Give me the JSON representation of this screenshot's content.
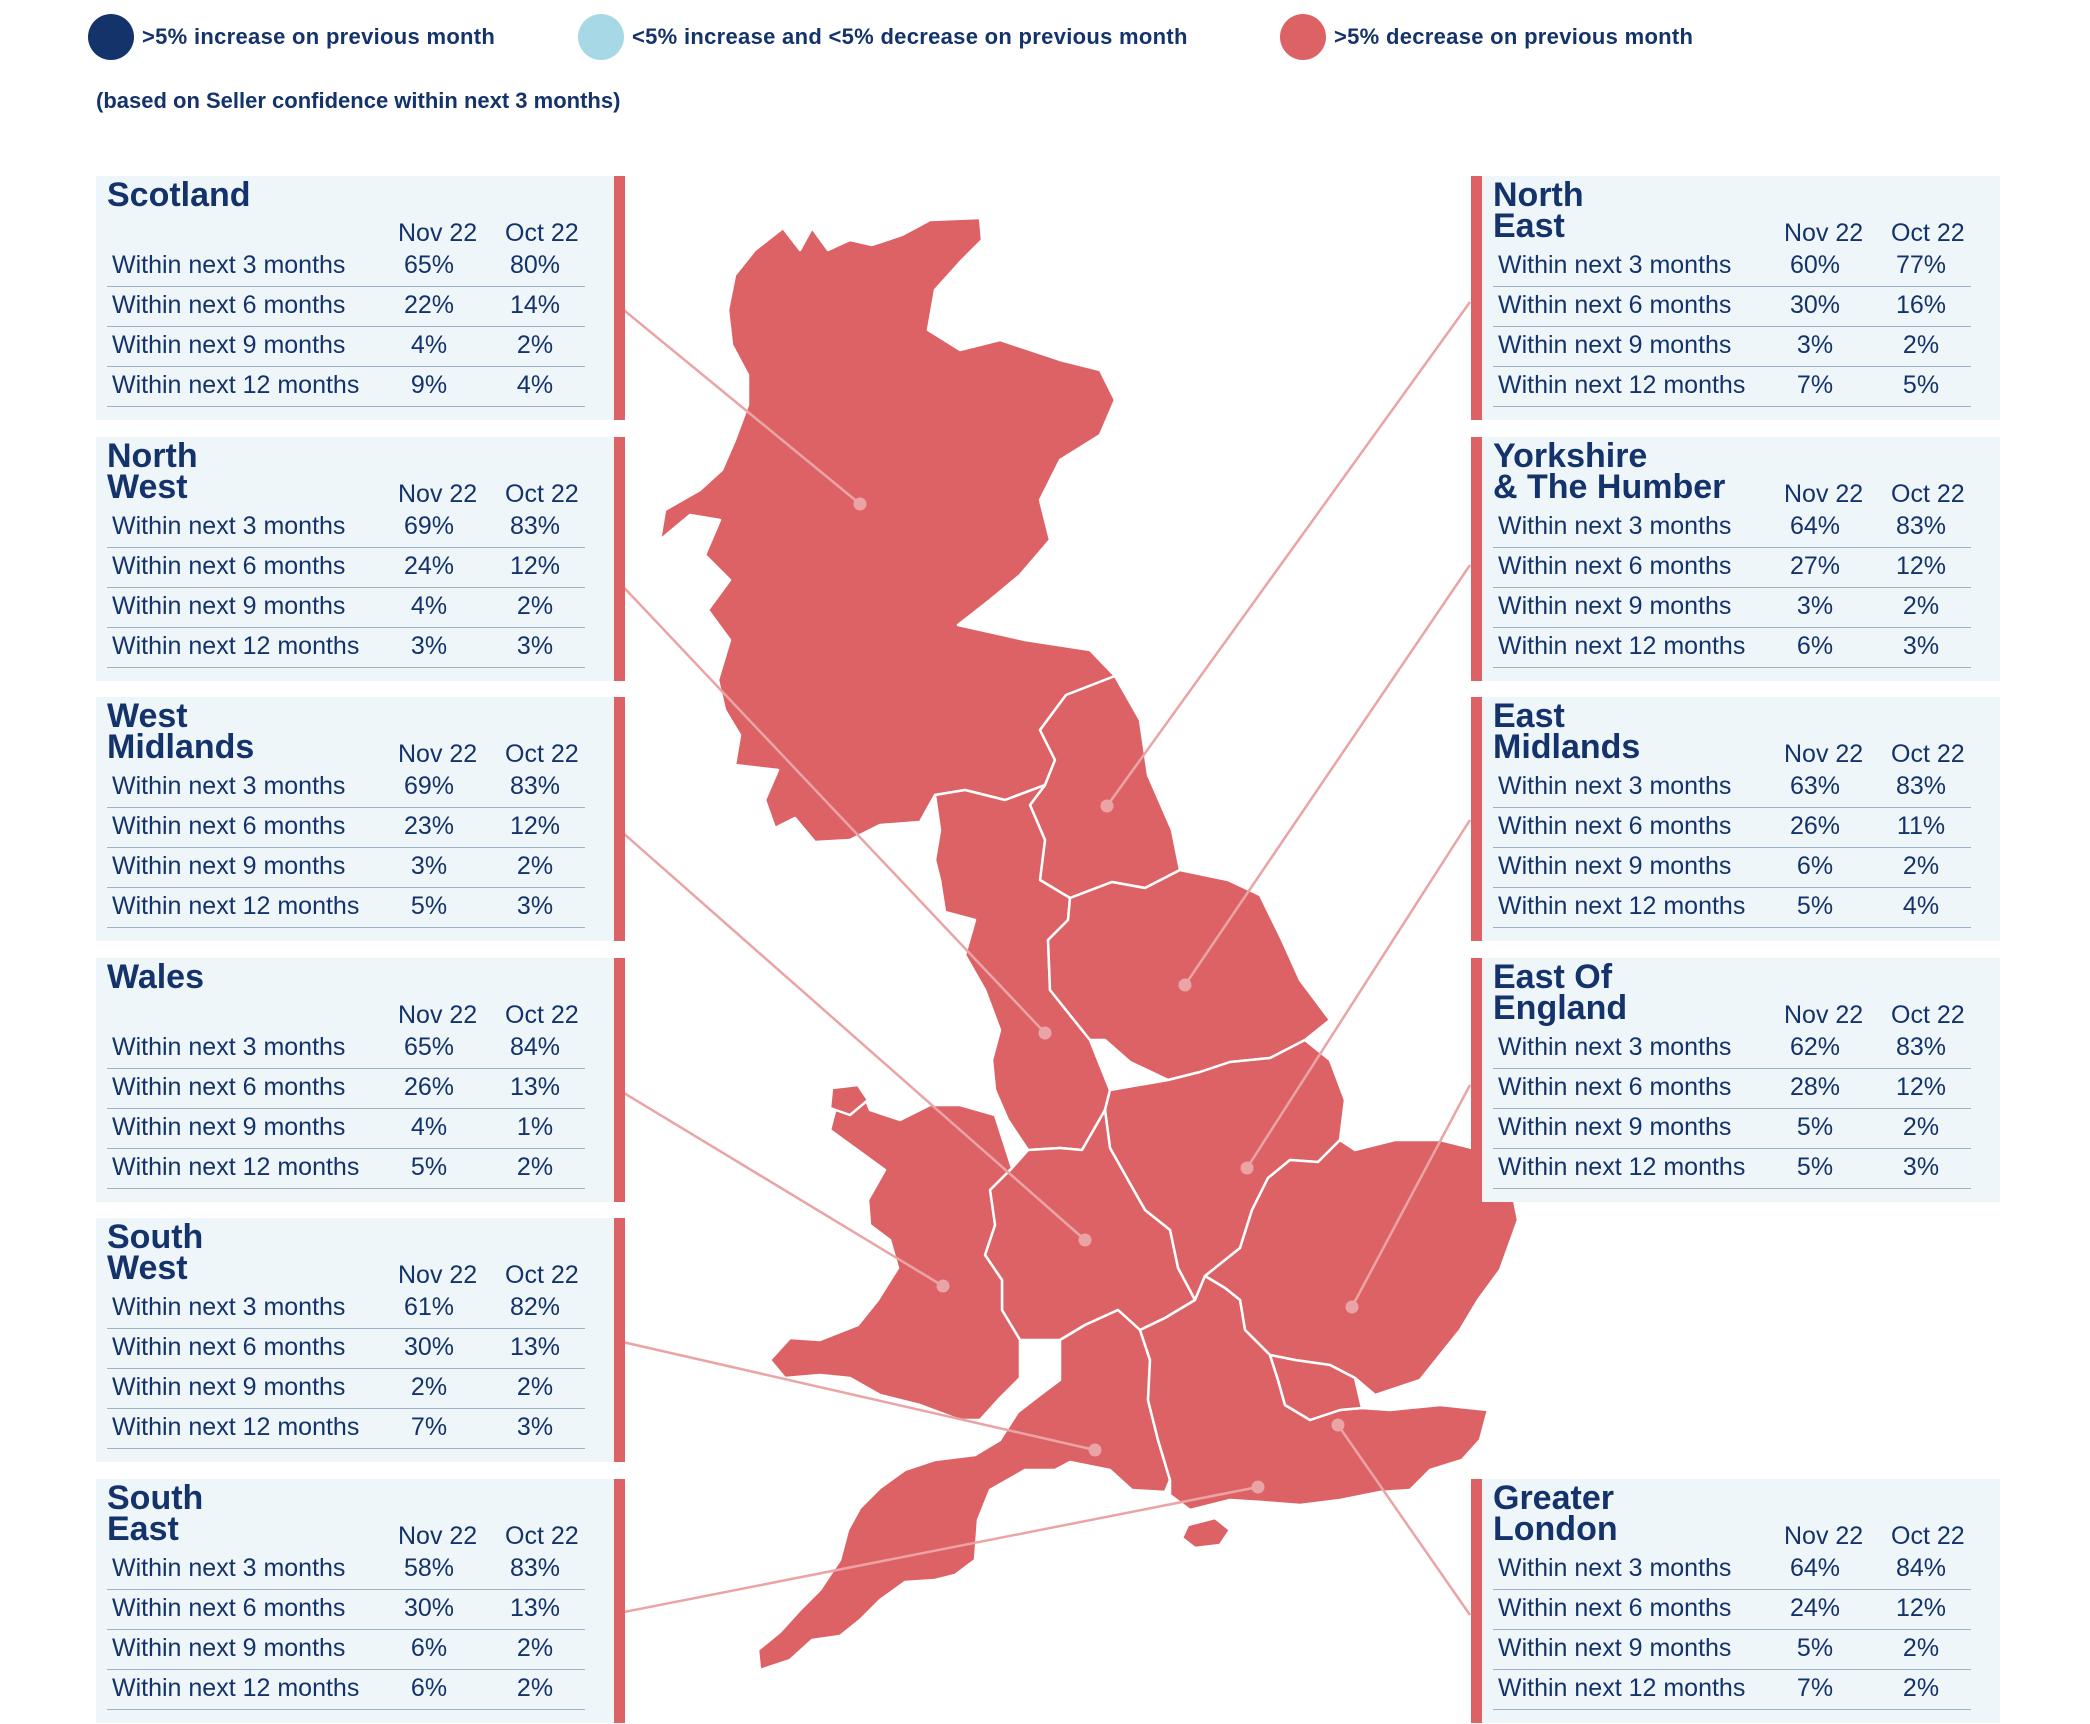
{
  "legend": {
    "items": [
      {
        "label": ">5% increase on previous month",
        "color": "#14336b"
      },
      {
        "label": "<5% increase and <5% decrease on previous month",
        "color": "#a7d8e6"
      },
      {
        "label": ">5% decrease on previous month",
        "color": "#dd6266"
      }
    ],
    "note": "(based on Seller confidence within next 3 months)"
  },
  "columns": {
    "current": "Nov 22",
    "previous": "Oct 22"
  },
  "map_fill_color": "#dd6266",
  "regions": [
    {
      "id": "scotland",
      "name": "Scotland",
      "status": ">5% decrease on previous month",
      "rows": [
        {
          "label": "Within next 3 months",
          "nov": "65%",
          "oct": "80%"
        },
        {
          "label": "Within next 6 months",
          "nov": "22%",
          "oct": "14%"
        },
        {
          "label": "Within next 9 months",
          "nov": "4%",
          "oct": "2%"
        },
        {
          "label": "Within next 12 months",
          "nov": "9%",
          "oct": "4%"
        }
      ]
    },
    {
      "id": "north-west",
      "name": "North\nWest",
      "status": ">5% decrease on previous month",
      "rows": [
        {
          "label": "Within next 3 months",
          "nov": "69%",
          "oct": "83%"
        },
        {
          "label": "Within next 6 months",
          "nov": "24%",
          "oct": "12%"
        },
        {
          "label": "Within next 9 months",
          "nov": "4%",
          "oct": "2%"
        },
        {
          "label": "Within next 12 months",
          "nov": "3%",
          "oct": "3%"
        }
      ]
    },
    {
      "id": "west-midlands",
      "name": "West\nMidlands",
      "status": ">5% decrease on previous month",
      "rows": [
        {
          "label": "Within next 3 months",
          "nov": "69%",
          "oct": "83%"
        },
        {
          "label": "Within next 6 months",
          "nov": "23%",
          "oct": "12%"
        },
        {
          "label": "Within next 9 months",
          "nov": "3%",
          "oct": "2%"
        },
        {
          "label": "Within next 12 months",
          "nov": "5%",
          "oct": "3%"
        }
      ]
    },
    {
      "id": "wales",
      "name": "Wales",
      "status": ">5% decrease on previous month",
      "rows": [
        {
          "label": "Within next 3 months",
          "nov": "65%",
          "oct": "84%"
        },
        {
          "label": "Within next 6 months",
          "nov": "26%",
          "oct": "13%"
        },
        {
          "label": "Within next 9 months",
          "nov": "4%",
          "oct": "1%"
        },
        {
          "label": "Within next 12 months",
          "nov": "5%",
          "oct": "2%"
        }
      ]
    },
    {
      "id": "south-west",
      "name": "South\nWest",
      "status": ">5% decrease on previous month",
      "rows": [
        {
          "label": "Within next 3 months",
          "nov": "61%",
          "oct": "82%"
        },
        {
          "label": "Within next 6 months",
          "nov": "30%",
          "oct": "13%"
        },
        {
          "label": "Within next 9 months",
          "nov": "2%",
          "oct": "2%"
        },
        {
          "label": "Within next 12 months",
          "nov": "7%",
          "oct": "3%"
        }
      ]
    },
    {
      "id": "south-east",
      "name": "South\nEast",
      "status": ">5% decrease on previous month",
      "rows": [
        {
          "label": "Within next 3 months",
          "nov": "58%",
          "oct": "83%"
        },
        {
          "label": "Within next 6 months",
          "nov": "30%",
          "oct": "13%"
        },
        {
          "label": "Within next 9 months",
          "nov": "6%",
          "oct": "2%"
        },
        {
          "label": "Within next 12 months",
          "nov": "6%",
          "oct": "2%"
        }
      ]
    },
    {
      "id": "north-east",
      "name": "North\nEast",
      "status": ">5% decrease on previous month",
      "rows": [
        {
          "label": "Within next 3 months",
          "nov": "60%",
          "oct": "77%"
        },
        {
          "label": "Within next 6 months",
          "nov": "30%",
          "oct": "16%"
        },
        {
          "label": "Within next 9 months",
          "nov": "3%",
          "oct": "2%"
        },
        {
          "label": "Within next 12 months",
          "nov": "7%",
          "oct": "5%"
        }
      ]
    },
    {
      "id": "yorkshire",
      "name": "Yorkshire\n& The Humber",
      "status": ">5% decrease on previous month",
      "rows": [
        {
          "label": "Within next 3 months",
          "nov": "64%",
          "oct": "83%"
        },
        {
          "label": "Within next 6 months",
          "nov": "27%",
          "oct": "12%"
        },
        {
          "label": "Within next 9 months",
          "nov": "3%",
          "oct": "2%"
        },
        {
          "label": "Within next 12 months",
          "nov": "6%",
          "oct": "3%"
        }
      ]
    },
    {
      "id": "east-midlands",
      "name": "East\nMidlands",
      "status": ">5% decrease on previous month",
      "rows": [
        {
          "label": "Within next 3 months",
          "nov": "63%",
          "oct": "83%"
        },
        {
          "label": "Within next 6 months",
          "nov": "26%",
          "oct": "11%"
        },
        {
          "label": "Within next 9 months",
          "nov": "6%",
          "oct": "2%"
        },
        {
          "label": "Within next 12 months",
          "nov": "5%",
          "oct": "4%"
        }
      ]
    },
    {
      "id": "east-of-england",
      "name": "East Of\nEngland",
      "status": ">5% decrease on previous month",
      "rows": [
        {
          "label": "Within next 3 months",
          "nov": "62%",
          "oct": "83%"
        },
        {
          "label": "Within next 6 months",
          "nov": "28%",
          "oct": "12%"
        },
        {
          "label": "Within next 9 months",
          "nov": "5%",
          "oct": "2%"
        },
        {
          "label": "Within next 12 months",
          "nov": "5%",
          "oct": "3%"
        }
      ]
    },
    {
      "id": "greater-london",
      "name": "Greater\nLondon",
      "status": ">5% decrease on previous month",
      "rows": [
        {
          "label": "Within next 3 months",
          "nov": "64%",
          "oct": "84%"
        },
        {
          "label": "Within next 6 months",
          "nov": "24%",
          "oct": "12%"
        },
        {
          "label": "Within next 9 months",
          "nov": "5%",
          "oct": "2%"
        },
        {
          "label": "Within next 12 months",
          "nov": "7%",
          "oct": "2%"
        }
      ]
    }
  ]
}
